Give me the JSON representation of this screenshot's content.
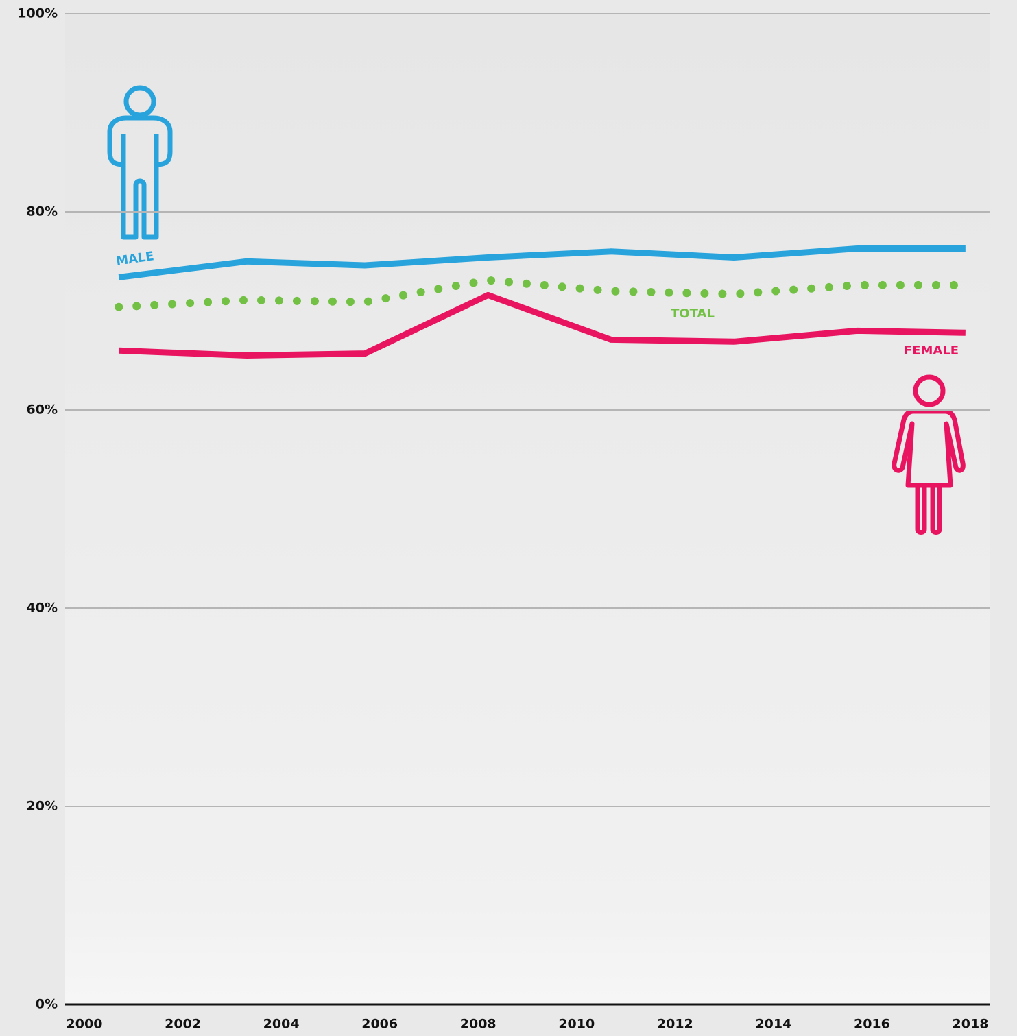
{
  "chart_data": {
    "type": "line",
    "x": [
      2000.7,
      2003.3,
      2005.7,
      2008.2,
      2010.7,
      2013.2,
      2015.7,
      2017.9
    ],
    "series": [
      {
        "name": "MALE",
        "color": "#29a3dc",
        "style": "solid",
        "values": [
          73.4,
          75.0,
          74.6,
          75.4,
          76.0,
          75.4,
          76.3,
          76.3
        ]
      },
      {
        "name": "TOTAL",
        "color": "#72c044",
        "style": "dotted",
        "values": [
          70.4,
          71.1,
          70.9,
          73.1,
          72.0,
          71.7,
          72.6,
          72.6
        ]
      },
      {
        "name": "FEMALE",
        "color": "#e8145f",
        "style": "solid",
        "values": [
          66.0,
          65.5,
          65.7,
          71.6,
          67.1,
          66.9,
          68.0,
          67.8
        ]
      }
    ],
    "xlim": [
      2000,
      2018
    ],
    "xticks": [
      2000,
      2002,
      2004,
      2006,
      2008,
      2010,
      2012,
      2014,
      2016,
      2018
    ],
    "ylim": [
      0,
      100
    ],
    "yticks": [
      {
        "value": 0,
        "label": "0%"
      },
      {
        "value": 20,
        "label": "20%"
      },
      {
        "value": 40,
        "label": "40%"
      },
      {
        "value": 60,
        "label": "60%"
      },
      {
        "value": 80,
        "label": "80%"
      },
      {
        "value": 100,
        "label": "100%"
      }
    ],
    "grid": true
  }
}
